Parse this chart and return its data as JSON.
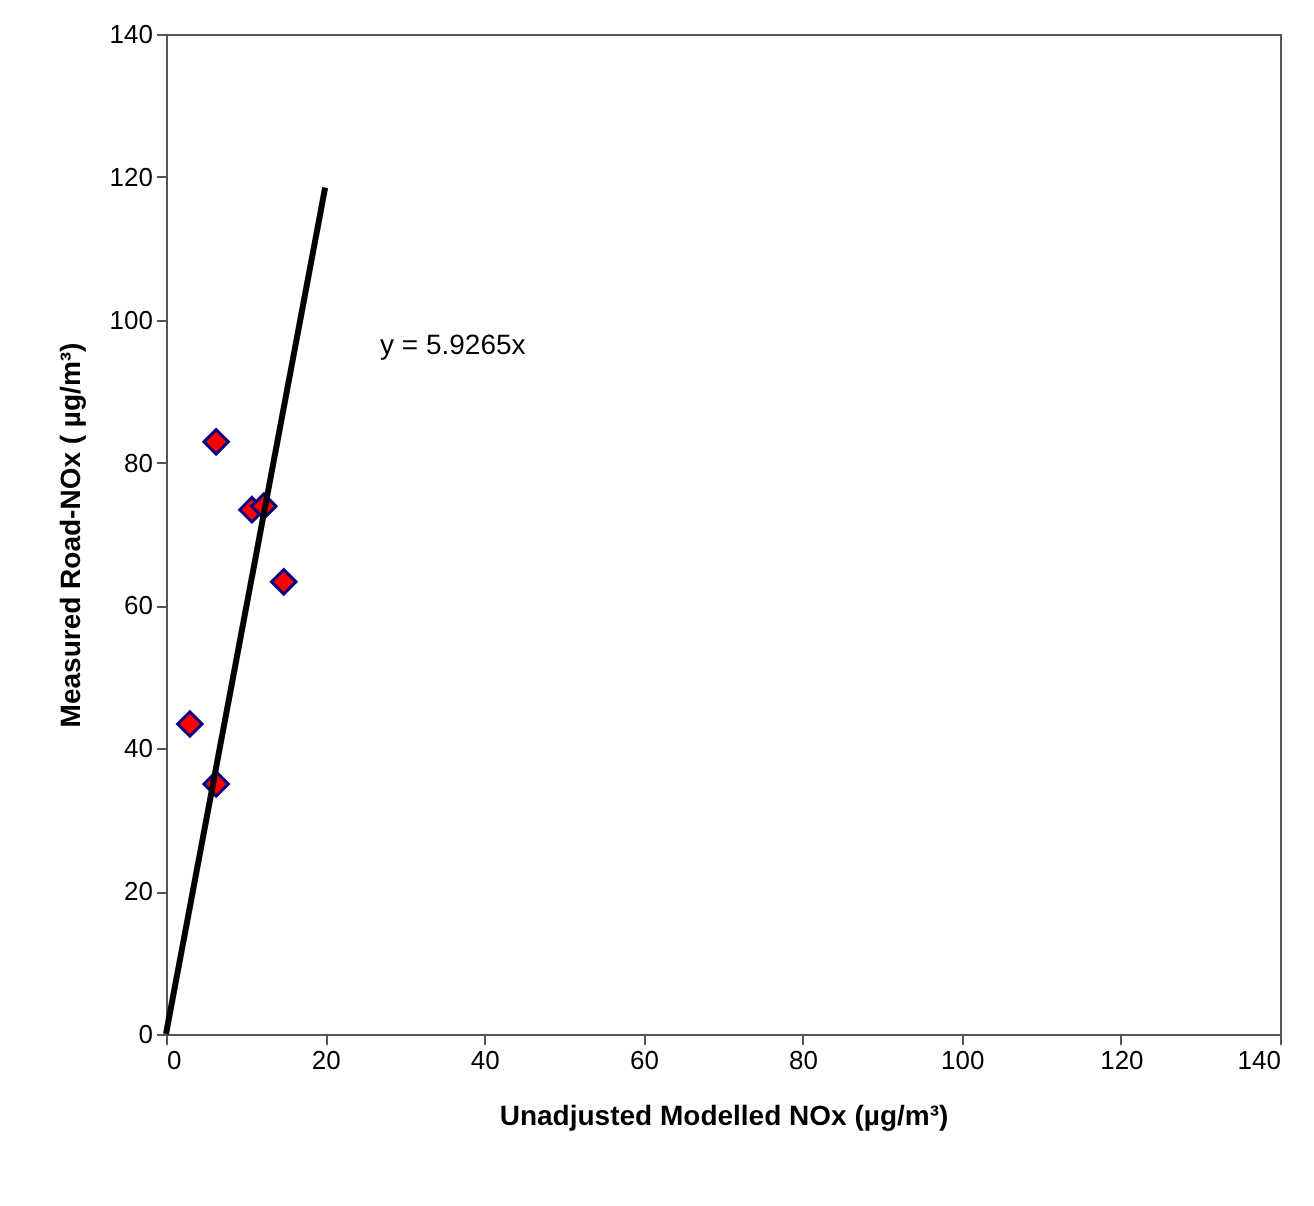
{
  "chart_data": {
    "type": "scatter",
    "xlabel": "Unadjusted Modelled NOx (µg/m³)",
    "ylabel": "Measured Road-NOx (  µg/m³)",
    "xlim": [
      0,
      140
    ],
    "ylim": [
      0,
      140
    ],
    "xticks": [
      0,
      20,
      40,
      60,
      80,
      100,
      120,
      140
    ],
    "yticks": [
      0,
      20,
      40,
      60,
      80,
      100,
      120,
      140
    ],
    "grid": false,
    "series": [
      {
        "color": "#ff0000",
        "marker": "diamond",
        "x": [
          3.0,
          6.3,
          6.3,
          10.8,
          12.3,
          14.8
        ],
        "values": [
          43.4,
          82.9,
          35.0,
          73.4,
          73.9,
          63.3
        ]
      },
      {
        "type": "line",
        "color": "#000000",
        "line_style": "solid",
        "x": [
          0,
          20
        ],
        "values": [
          0,
          118.5
        ]
      }
    ],
    "annotations": [
      "y = 5.9265x"
    ]
  }
}
